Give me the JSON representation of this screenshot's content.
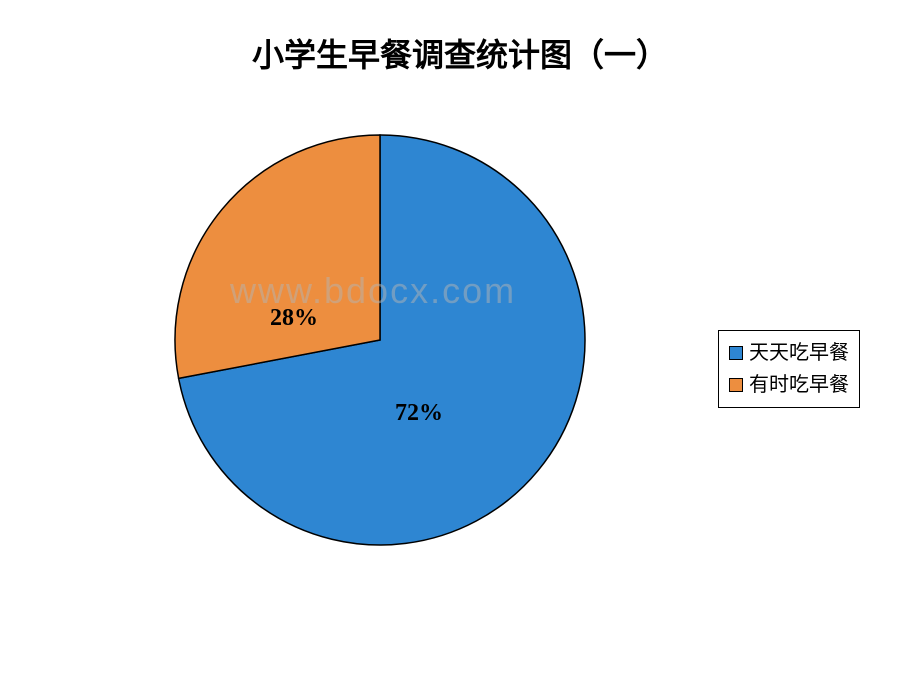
{
  "title": "小学生早餐调查统计图（一）",
  "watermark": "www.bdocx.com",
  "chart": {
    "type": "pie",
    "background_color": "#ffffff",
    "slices": [
      {
        "label": "天天吃早餐",
        "value": 72,
        "percent_label": "72%",
        "color": "#2e86d2",
        "border_color": "#000000"
      },
      {
        "label": "有时吃早餐",
        "value": 28,
        "percent_label": "28%",
        "color": "#ed8e3f",
        "border_color": "#000000"
      }
    ],
    "title_fontsize": 32,
    "label_fontsize": 24,
    "legend_fontsize": 20,
    "legend_border_color": "#000000",
    "start_angle": -90,
    "radius": 205
  }
}
